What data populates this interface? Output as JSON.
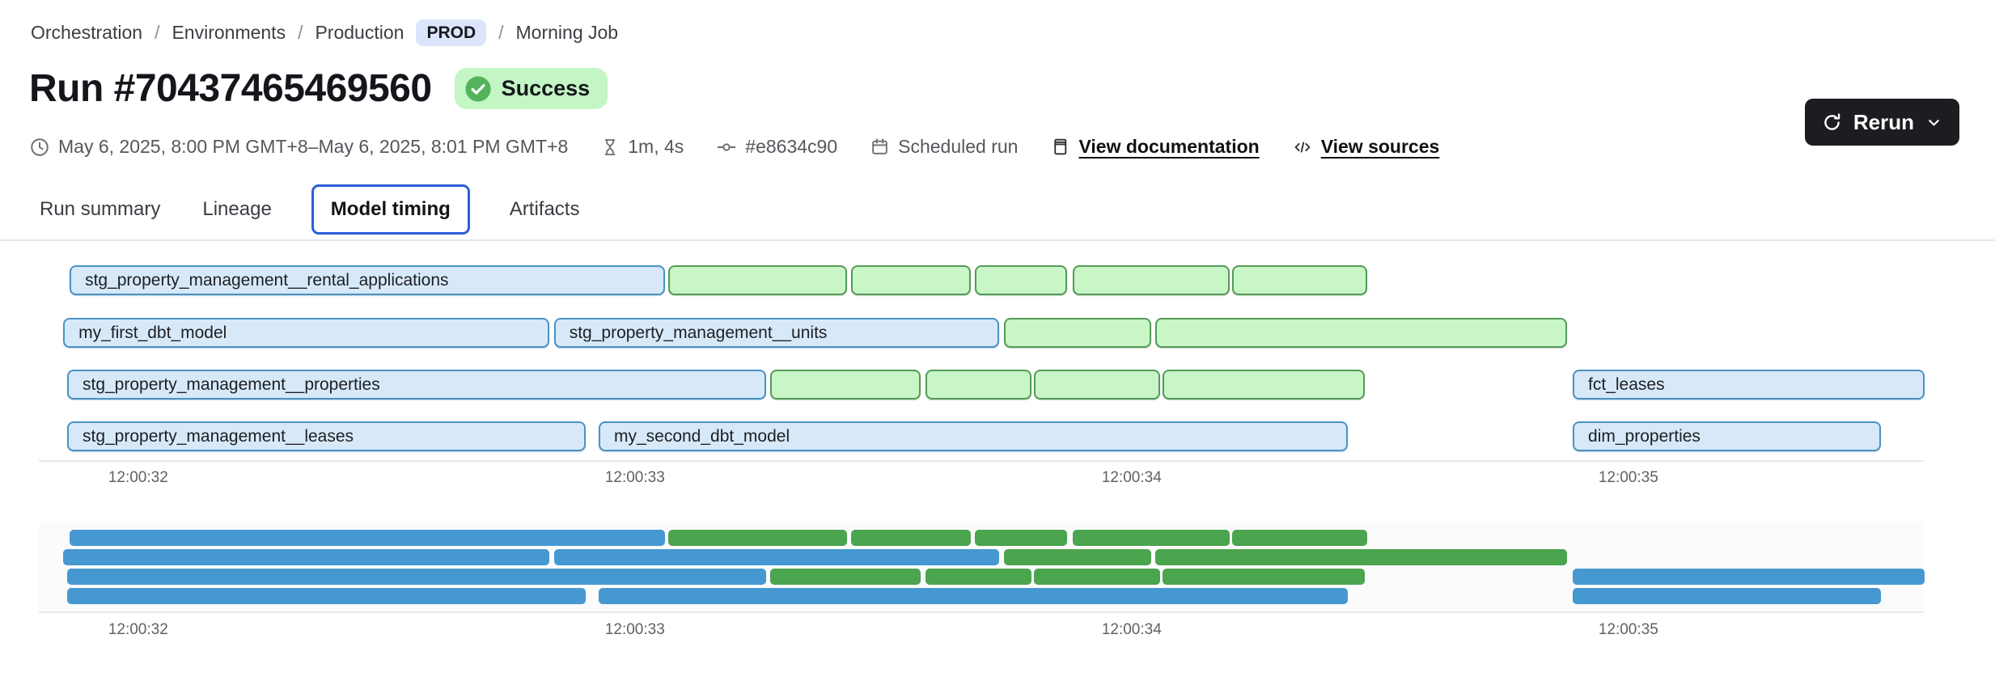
{
  "breadcrumb": {
    "separator": "/",
    "items": [
      {
        "label": "Orchestration"
      },
      {
        "label": "Environments"
      },
      {
        "label": "Production",
        "badge": "PROD"
      },
      {
        "label": "Morning Job"
      }
    ]
  },
  "header": {
    "title": "Run #70437465469560",
    "status": "Success"
  },
  "meta": {
    "time_range": "May 6, 2025, 8:00 PM GMT+8–May 6, 2025, 8:01 PM GMT+8",
    "duration": "1m, 4s",
    "commit": "#e8634c90",
    "trigger": "Scheduled run",
    "documentation_link": "View documentation",
    "sources_link": "View sources"
  },
  "actions": {
    "rerun_label": "Rerun"
  },
  "tabs": [
    {
      "label": "Run summary",
      "active": false
    },
    {
      "label": "Lineage",
      "active": false
    },
    {
      "label": "Model timing",
      "active": true
    },
    {
      "label": "Artifacts",
      "active": false
    }
  ],
  "colors": {
    "env_badge_bg": "#dbe6fd",
    "success_badge_bg": "#c4f5c4",
    "success_dot": "#54b45c",
    "active_tab_border": "#2b5ed8",
    "bar_blue_fill": "#d7e9f9",
    "bar_blue_border": "#4a92c5",
    "bar_green_fill": "#c8f6c6",
    "bar_green_border": "#559a57",
    "minimap_blue": "#4698d0",
    "minimap_green": "#4ba44e",
    "rerun_button_bg": "#1d1d21"
  },
  "chart_data": {
    "type": "gantt",
    "title": "Model timing",
    "x_axis": {
      "t_min": 31.8,
      "t_max": 35.6,
      "unit": "seconds after 12:00:00",
      "ticks": [
        {
          "label": "12:00:32",
          "t": 32
        },
        {
          "label": "12:00:33",
          "t": 33
        },
        {
          "label": "12:00:34",
          "t": 34
        },
        {
          "label": "12:00:35",
          "t": 35
        }
      ]
    },
    "rows": [
      {
        "bars": [
          {
            "label": "stg_property_management__rental_applications",
            "color": "blue",
            "start": 31.862,
            "end": 33.06
          },
          {
            "label": "",
            "color": "green",
            "start": 33.067,
            "end": 33.427
          },
          {
            "label": "",
            "color": "green",
            "start": 33.435,
            "end": 33.677
          },
          {
            "label": "",
            "color": "green",
            "start": 33.684,
            "end": 33.87
          },
          {
            "label": "",
            "color": "green",
            "start": 33.881,
            "end": 34.197
          },
          {
            "label": "",
            "color": "green",
            "start": 34.203,
            "end": 34.475
          }
        ]
      },
      {
        "bars": [
          {
            "label": "my_first_dbt_model",
            "color": "blue",
            "start": 31.849,
            "end": 32.827
          },
          {
            "label": "stg_property_management__units",
            "color": "blue",
            "start": 32.837,
            "end": 33.733
          },
          {
            "label": "",
            "color": "green",
            "start": 33.743,
            "end": 34.039
          },
          {
            "label": "",
            "color": "green",
            "start": 34.047,
            "end": 34.876
          }
        ]
      },
      {
        "bars": [
          {
            "label": "stg_property_management__properties",
            "color": "blue",
            "start": 31.857,
            "end": 33.264
          },
          {
            "label": "",
            "color": "green",
            "start": 33.272,
            "end": 33.575
          },
          {
            "label": "",
            "color": "green",
            "start": 33.585,
            "end": 33.798
          },
          {
            "label": "",
            "color": "green",
            "start": 33.803,
            "end": 34.057
          },
          {
            "label": "",
            "color": "green",
            "start": 34.062,
            "end": 34.469
          },
          {
            "label": "fct_leases",
            "color": "blue",
            "start": 34.888,
            "end": 35.596
          }
        ]
      },
      {
        "bars": [
          {
            "label": "stg_property_management__leases",
            "color": "blue",
            "start": 31.857,
            "end": 32.901
          },
          {
            "label": "my_second_dbt_model",
            "color": "blue",
            "start": 32.927,
            "end": 34.435
          },
          {
            "label": "dim_properties",
            "color": "blue",
            "start": 34.888,
            "end": 35.509
          }
        ]
      }
    ]
  }
}
